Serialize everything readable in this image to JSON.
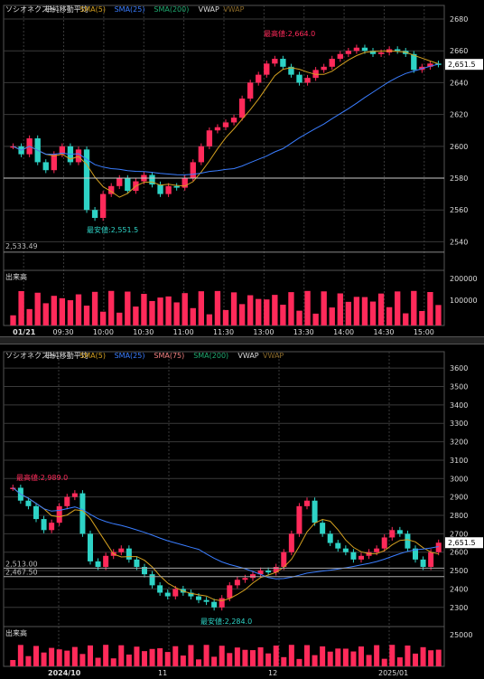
{
  "colors": {
    "up": "#ff2a5a",
    "down": "#2ed3c6",
    "sma5": "#d4a020",
    "sma25": "#3a7dff",
    "sma75": "#f08080",
    "sma200": "#1faa70",
    "vwap_top": "#8b6a2a",
    "grid": "#3a3a3a",
    "price_label_bg": "#ffffff",
    "volume": "#ff2a5a"
  },
  "chart_data": [
    {
      "type": "candlestick",
      "panel": "intraday",
      "legend": {
        "name": "ソシオネクスト",
        "method": "単純移動平均",
        "sma5": "SMA(5)",
        "sma25": "SMA(25)",
        "sma200": "SMA(200)",
        "vwap1": "VWAP",
        "vwap2": "VWAP"
      },
      "y_ticks": [
        "2680",
        "2660",
        "2640",
        "2620",
        "2600",
        "2580",
        "2560",
        "2540"
      ],
      "ylim": [
        2530,
        2684
      ],
      "x_ticks": [
        "01/21",
        "09:30",
        "10:00",
        "10:30",
        "11:00",
        "11:30",
        "13:00",
        "13:30",
        "14:00",
        "14:30",
        "15:00"
      ],
      "current_price": "2,651.5",
      "ref_line_label": "2,533.49",
      "ref_line_value": 2533.49,
      "hline_value": 2580,
      "high_label": "最高値:2,664.0",
      "low_label": "最安値:2,551.5",
      "volume_label": "出来高",
      "volume_ticks": [
        "200000",
        "100000"
      ],
      "closes": [
        2600,
        2595,
        2605,
        2590,
        2585,
        2595,
        2600,
        2590,
        2598,
        2560,
        2555,
        2570,
        2575,
        2580,
        2572,
        2578,
        2582,
        2576,
        2570,
        2575,
        2574,
        2580,
        2590,
        2600,
        2610,
        2612,
        2615,
        2618,
        2630,
        2640,
        2645,
        2652,
        2655,
        2650,
        2645,
        2640,
        2643,
        2648,
        2650,
        2655,
        2658,
        2660,
        2662,
        2660,
        2658,
        2659,
        2661,
        2660,
        2658,
        2648,
        2650,
        2652,
        2651.5
      ]
    },
    {
      "type": "candlestick",
      "panel": "daily",
      "legend": {
        "name": "ソシオネクスト",
        "method": "単純移動平均",
        "sma5": "SMA(5)",
        "sma25": "SMA(25)",
        "sma75": "SMA(75)",
        "sma200": "SMA(200)",
        "vwap1": "VWAP",
        "vwap2": "VWAP"
      },
      "y_ticks": [
        "3600",
        "3500",
        "3400",
        "3300",
        "3200",
        "3100",
        "3000",
        "2900",
        "2800",
        "2700",
        "2600",
        "2500",
        "2400",
        "2300"
      ],
      "ylim": [
        2240,
        3650
      ],
      "x_ticks": [
        "2024/10",
        "11",
        "12",
        "2025/01"
      ],
      "current_price": "2,651.5",
      "ref_labels": [
        "2,513.00",
        "2,467.50"
      ],
      "ref_values": [
        2513,
        2467.5
      ],
      "high_label": "最高値:2,989.0",
      "low_label": "最安値:2,284.0",
      "volume_label": "出来高",
      "volume_ticks": [
        "25000"
      ],
      "closes": [
        2950,
        2880,
        2850,
        2780,
        2720,
        2760,
        2850,
        2900,
        2920,
        2700,
        2550,
        2520,
        2580,
        2600,
        2620,
        2560,
        2520,
        2480,
        2420,
        2380,
        2360,
        2400,
        2380,
        2360,
        2340,
        2330,
        2300,
        2350,
        2420,
        2450,
        2460,
        2480,
        2500,
        2490,
        2520,
        2600,
        2700,
        2850,
        2880,
        2760,
        2700,
        2650,
        2620,
        2600,
        2560,
        2580,
        2600,
        2620,
        2680,
        2720,
        2700,
        2620,
        2560,
        2520,
        2600,
        2651.5
      ]
    }
  ]
}
